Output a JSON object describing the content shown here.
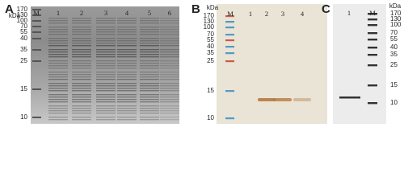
{
  "panels": [
    {
      "letter": "A",
      "unit": "kDa",
      "markers": [
        "170",
        "130",
        "100",
        "70",
        "55",
        "40",
        "35",
        "25",
        "15",
        "10"
      ],
      "lanes": [
        "M",
        "1",
        "2",
        "3",
        "4",
        "5",
        "6"
      ]
    },
    {
      "letter": "B",
      "unit": "kDa",
      "markers": [
        "170",
        "130",
        "100",
        "70",
        "55",
        "40",
        "35",
        "25",
        "15",
        "10"
      ],
      "lanes": [
        "M",
        "1",
        "2",
        "3",
        "4"
      ]
    },
    {
      "letter": "C",
      "unit": "kDa",
      "markers": [
        "170",
        "130",
        "100",
        "70",
        "55",
        "40",
        "35",
        "25",
        "15",
        "10"
      ],
      "lanes": [
        "1",
        "M"
      ]
    }
  ]
}
